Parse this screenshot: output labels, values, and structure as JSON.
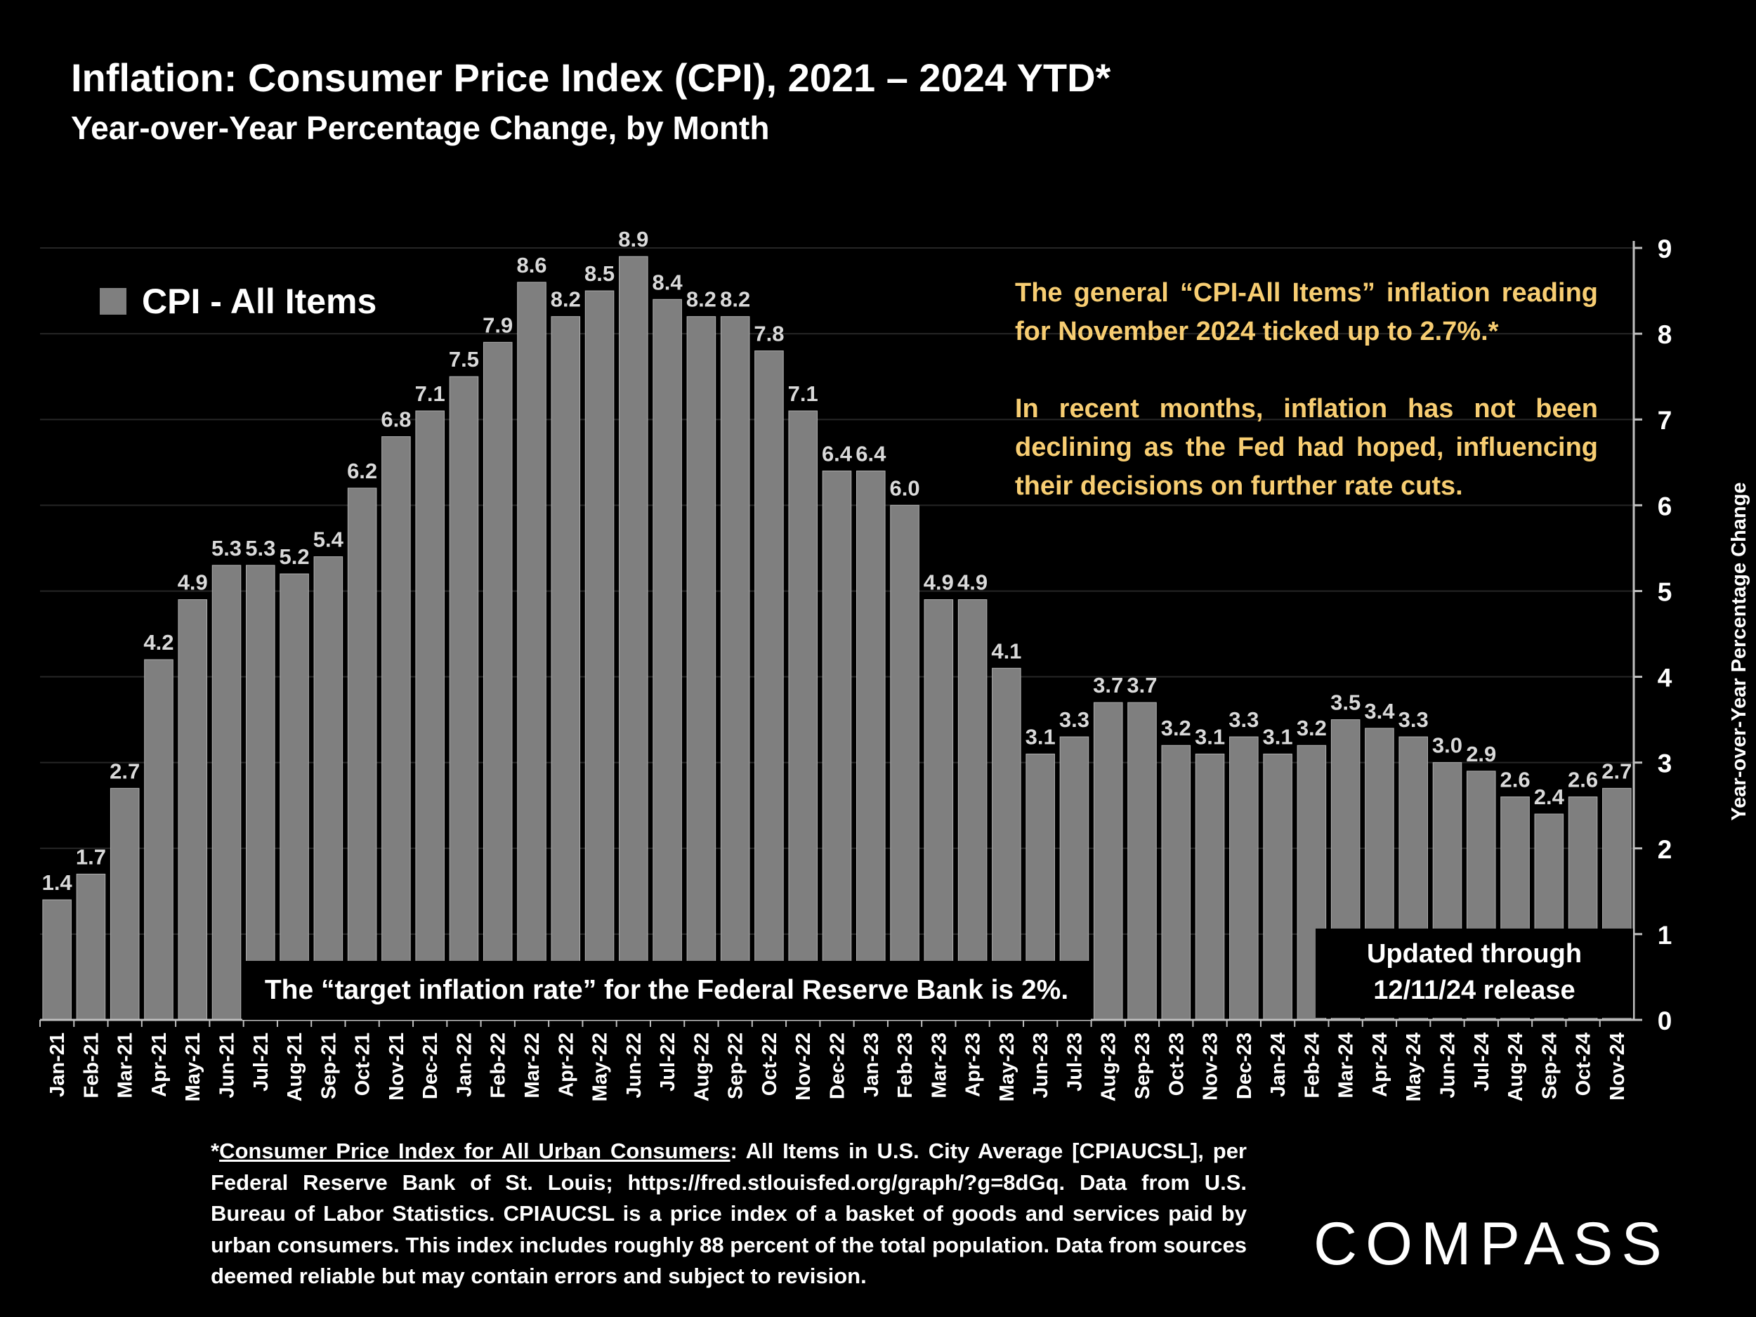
{
  "title": "Inflation: Consumer Price Index (CPI), 2021 – 2024 YTD*",
  "subtitle": "Year-over-Year Percentage Change, by Month",
  "annotation": {
    "para1": "The general “CPI-All Items” inflation reading for November 2024 ticked up to 2.7%.*",
    "para2": "In recent months, inflation has not been declining as the Fed had hoped, influencing their decisions on further rate cuts.",
    "color": "#f7cd72"
  },
  "target_note": "The “target inflation rate” for the Federal Reserve Bank is 2%.",
  "updated_note": {
    "line1": "Updated through",
    "line2": "12/11/24 release"
  },
  "footnote": {
    "prefix": "*",
    "link_text": "Consumer Price Index for All Urban Consumers",
    "body": ": All Items in U.S. City Average [CPIAUCSL], per Federal Reserve Bank of St. Louis; https://fred.stlouisfed.org/graph/?g=8dGq. Data from U.S. Bureau of Labor Statistics. CPIAUCSL is a price index of a basket of goods and services paid by urban consumers. This index includes roughly 88 percent of the total population. Data from sources deemed reliable but may contain errors and subject to revision."
  },
  "brand": "COMPASS",
  "chart_data": {
    "type": "bar",
    "title": "Inflation: Consumer Price Index (CPI), 2021 – 2024 YTD*",
    "subtitle": "Year-over-Year Percentage Change, by Month",
    "xlabel": "",
    "ylabel": "Year-over-Year Percentage Change",
    "ylim": [
      0,
      9
    ],
    "yticks": [
      0,
      1,
      2,
      3,
      4,
      5,
      6,
      7,
      8,
      9
    ],
    "y_axis_side": "right",
    "grid": true,
    "legend_position": "top-left",
    "bar_color": "#7f7f7f",
    "categories": [
      "Jan-21",
      "Feb-21",
      "Mar-21",
      "Apr-21",
      "May-21",
      "Jun-21",
      "Jul-21",
      "Aug-21",
      "Sep-21",
      "Oct-21",
      "Nov-21",
      "Dec-21",
      "Jan-22",
      "Feb-22",
      "Mar-22",
      "Apr-22",
      "May-22",
      "Jun-22",
      "Jul-22",
      "Aug-22",
      "Sep-22",
      "Oct-22",
      "Nov-22",
      "Dec-22",
      "Jan-23",
      "Feb-23",
      "Mar-23",
      "Apr-23",
      "May-23",
      "Jun-23",
      "Jul-23",
      "Aug-23",
      "Sep-23",
      "Oct-23",
      "Nov-23",
      "Dec-23",
      "Jan-24",
      "Feb-24",
      "Mar-24",
      "Apr-24",
      "May-24",
      "Jun-24",
      "Jul-24",
      "Aug-24",
      "Sep-24",
      "Oct-24",
      "Nov-24"
    ],
    "series": [
      {
        "name": "CPI - All Items",
        "values": [
          1.4,
          1.7,
          2.7,
          4.2,
          4.9,
          5.3,
          5.3,
          5.2,
          5.4,
          6.2,
          6.8,
          7.1,
          7.5,
          7.9,
          8.6,
          8.2,
          8.5,
          8.9,
          8.4,
          8.2,
          8.2,
          7.8,
          7.1,
          6.4,
          6.4,
          6.0,
          4.9,
          4.9,
          4.1,
          3.1,
          3.3,
          3.7,
          3.7,
          3.2,
          3.1,
          3.3,
          3.1,
          3.2,
          3.5,
          3.4,
          3.3,
          3.0,
          2.9,
          2.6,
          2.4,
          2.6,
          2.7
        ],
        "labels": [
          "1.4",
          "1.7",
          "2.7",
          "4.2",
          "4.9",
          "5.3",
          "5.3",
          "5.2",
          "5.4",
          "6.2",
          "6.8",
          "7.1",
          "7.5",
          "7.9",
          "8.6",
          "8.2",
          "8.5",
          "8.9",
          "8.4",
          "8.2",
          "8.2",
          "7.8",
          "7.1",
          "6.4",
          "6.4",
          "6.0",
          "4.9",
          "4.9",
          "4.1",
          "3.1",
          "3.3",
          "3.7",
          "3.7",
          "3.2",
          "3.1",
          "3.3",
          "3.1",
          "3.2",
          "3.5",
          "3.4",
          "3.3",
          "3.0",
          "2.9",
          "2.6",
          "2.4",
          "2.6",
          "2.7"
        ]
      }
    ]
  }
}
